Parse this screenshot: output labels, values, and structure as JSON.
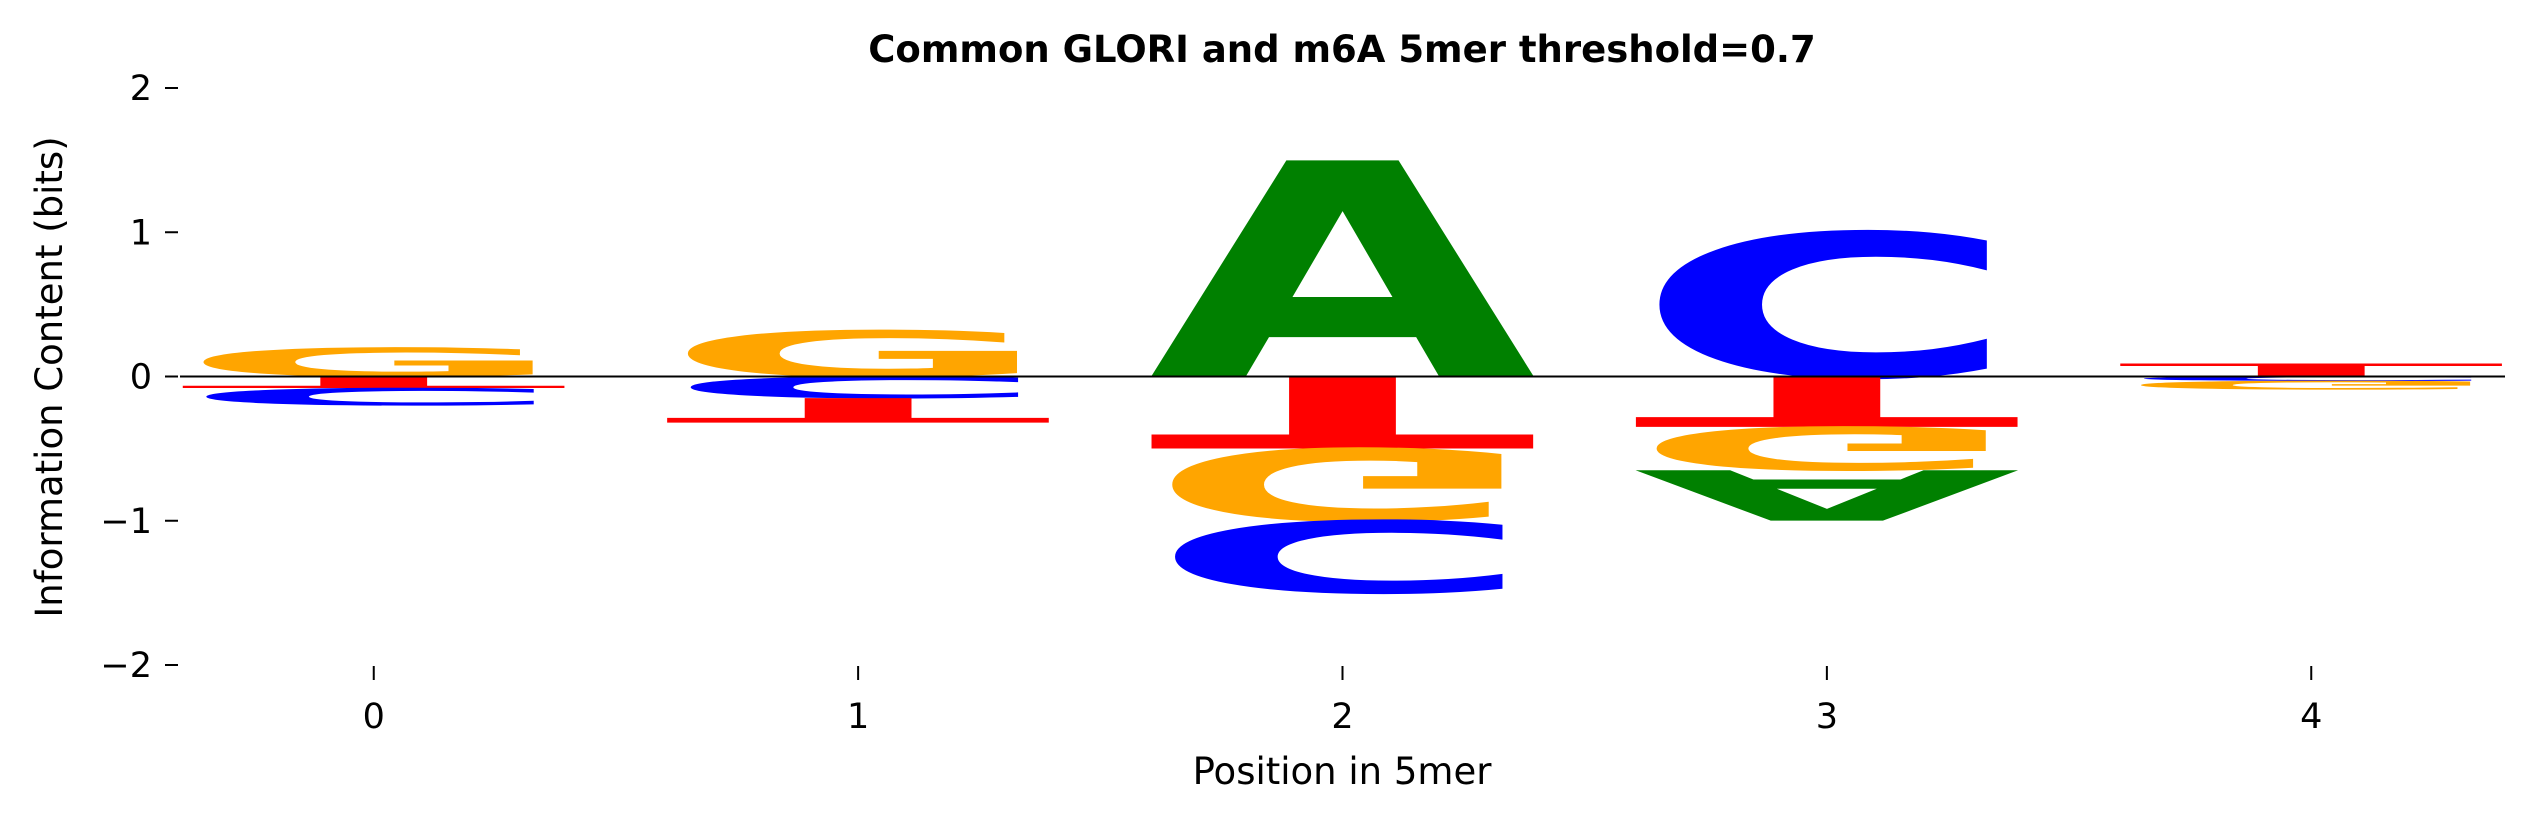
{
  "chart_data": {
    "type": "sequence-logo",
    "title": "Common GLORI and m6A 5mer threshold=0.7",
    "xlabel": "Position in 5mer",
    "ylabel": "Information Content (bits)",
    "ylim": [
      -2,
      2
    ],
    "yticks": [
      2,
      1,
      0,
      -1,
      -2
    ],
    "ytick_labels": [
      "2",
      "1",
      "0",
      "−1",
      "−2"
    ],
    "positions": [
      0,
      1,
      2,
      3,
      4
    ],
    "xtick_labels": [
      "0",
      "1",
      "2",
      "3",
      "4"
    ],
    "colors": {
      "A": "#008000",
      "C": "#0000ff",
      "G": "#ffa500",
      "T": "#ff0000"
    },
    "stacks": [
      {
        "position": 0,
        "positive": [
          {
            "letter": "G",
            "bits": 0.2
          }
        ],
        "negative": [
          {
            "letter": "T",
            "bits": 0.08
          },
          {
            "letter": "C",
            "bits": 0.12
          }
        ]
      },
      {
        "position": 1,
        "positive": [
          {
            "letter": "G",
            "bits": 0.32
          }
        ],
        "negative": [
          {
            "letter": "C",
            "bits": 0.15
          },
          {
            "letter": "T",
            "bits": 0.17
          }
        ]
      },
      {
        "position": 2,
        "positive": [
          {
            "letter": "A",
            "bits": 1.5
          }
        ],
        "negative": [
          {
            "letter": "T",
            "bits": 0.5
          },
          {
            "letter": "G",
            "bits": 0.5
          },
          {
            "letter": "C",
            "bits": 0.5
          }
        ]
      },
      {
        "position": 3,
        "positive": [
          {
            "letter": "C",
            "bits": 1.0
          }
        ],
        "negative": [
          {
            "letter": "T",
            "bits": 0.35
          },
          {
            "letter": "G",
            "bits": 0.3
          },
          {
            "letter": "A",
            "bits": 0.35
          }
        ]
      },
      {
        "position": 4,
        "positive": [
          {
            "letter": "T",
            "bits": 0.09
          }
        ],
        "negative": [
          {
            "letter": "C",
            "bits": 0.03
          },
          {
            "letter": "G",
            "bits": 0.06
          }
        ]
      }
    ]
  }
}
